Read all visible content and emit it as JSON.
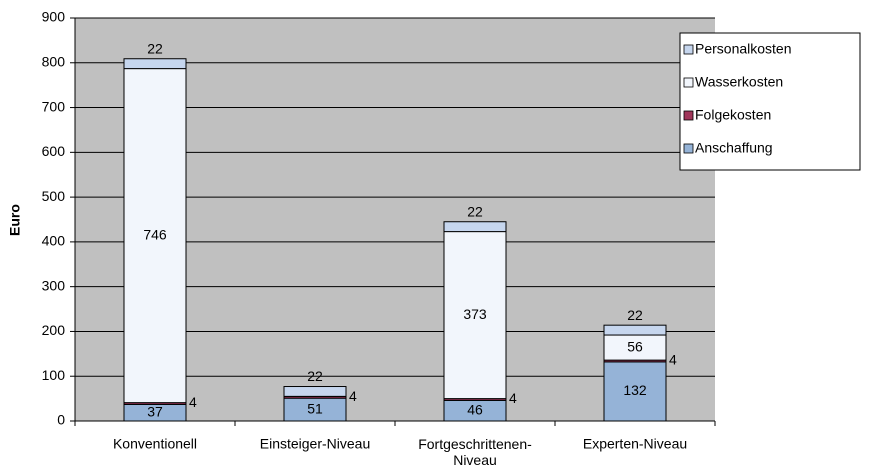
{
  "chart_data": {
    "type": "stacked_bar",
    "y_label": "Euro",
    "categories": [
      "Konventionell",
      "Einsteiger-Niveau",
      "Fortgeschrittenen-Niveau",
      "Experten-Niveau"
    ],
    "series": [
      {
        "name": "Anschaffung",
        "color": "#95b3d7",
        "values": [
          37,
          51,
          46,
          132
        ]
      },
      {
        "name": "Folgekosten",
        "color": "#a0365a",
        "values": [
          4,
          4,
          4,
          4
        ]
      },
      {
        "name": "Wasserkosten",
        "color": "#f2f6fc",
        "values": [
          746,
          0,
          373,
          56
        ]
      },
      {
        "name": "Personalkosten",
        "color": "#c6d6ee",
        "values": [
          22,
          22,
          22,
          22
        ]
      }
    ],
    "ylim": [
      0,
      900
    ],
    "yticks": [
      0,
      100,
      200,
      300,
      400,
      500,
      600,
      700,
      800,
      900
    ],
    "grid": true,
    "legend": "right"
  }
}
